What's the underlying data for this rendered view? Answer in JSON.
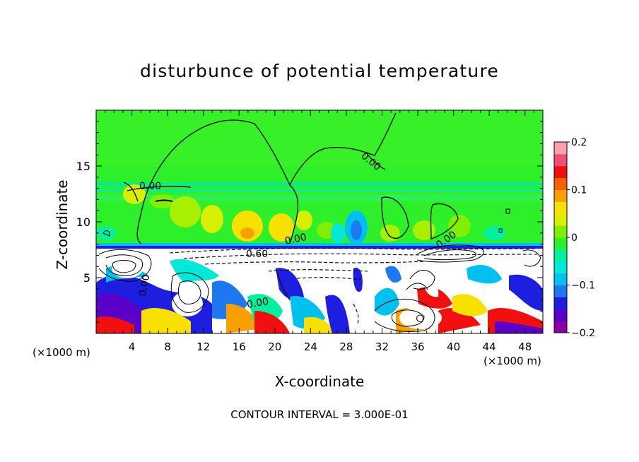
{
  "chart_data": {
    "type": "heatmap",
    "title": "disturbunce of potential temperature",
    "xlabel": "X-coordinate",
    "ylabel": "Z-coordinate",
    "x_unit": "(×1000 m)",
    "x_ticks": [
      4,
      8,
      12,
      16,
      20,
      24,
      28,
      32,
      36,
      40,
      44,
      48
    ],
    "y_ticks": [
      5,
      10,
      15
    ],
    "xlim": [
      0,
      50
    ],
    "ylim": [
      0,
      20
    ],
    "colorbar": {
      "range": [
        -0.2,
        0.2
      ],
      "ticks": [
        {
          "value": 0.2,
          "label": "0.2"
        },
        {
          "value": 0.1,
          "label": "0.1"
        },
        {
          "value": 0,
          "label": "0"
        },
        {
          "value": -0.1,
          "label": "−0.1"
        },
        {
          "value": -0.2,
          "label": "−0.2"
        }
      ],
      "colors": [
        "#8b00a8",
        "#5a00c8",
        "#1e1ee0",
        "#1e78f0",
        "#00c0f0",
        "#00e8d8",
        "#00f0a0",
        "#2af02a",
        "#80f000",
        "#d8f000",
        "#f8e000",
        "#f8a000",
        "#f86000",
        "#f01010",
        "#f05070",
        "#f8a0b0"
      ]
    },
    "contour_labels": [
      "0.00",
      "0.00",
      "0.00",
      "0.00",
      "0.60",
      "0.00",
      "0.00"
    ],
    "contour_interval_text": "CONTOUR INTERVAL = 3.000E-01"
  }
}
